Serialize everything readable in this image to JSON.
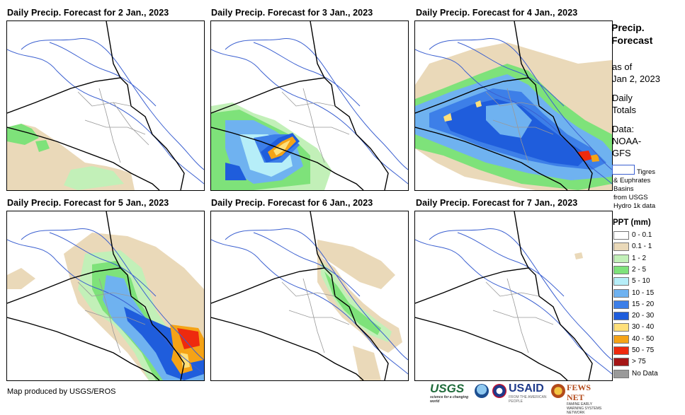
{
  "panels": [
    {
      "title": "Daily Precip. Forecast for 2 Jan., 2023"
    },
    {
      "title": "Daily Precip. Forecast for 3 Jan., 2023"
    },
    {
      "title": "Daily Precip. Forecast for 4 Jan., 2023"
    },
    {
      "title": "Daily Precip. Forecast for 5 Jan., 2023"
    },
    {
      "title": "Daily Precip. Forecast for 6 Jan., 2023"
    },
    {
      "title": "Daily Precip. Forecast for 7 Jan., 2023"
    }
  ],
  "sidebar": {
    "title_line1": "Precip.",
    "title_line2": "Forecast",
    "asof_line1": "as of",
    "asof_line2": "Jan 2, 2023",
    "daily_line1": "Daily",
    "daily_line2": "Totals",
    "data_line1": "Data:",
    "data_line2": "NOAA-",
    "data_line3": "GFS",
    "basin_line1": "Tigres",
    "basin_line2": "& Euphrates",
    "basin_line3": "Basins",
    "basin_line4": "from USGS",
    "basin_line5": "Hydro 1k data"
  },
  "legend": {
    "title": "PPT (mm)",
    "items": [
      {
        "label": "0 - 0.1",
        "color": "#ffffff"
      },
      {
        "label": "0.1 - 1",
        "color": "#ead9b9"
      },
      {
        "label": "1 - 2",
        "color": "#c2f0b8"
      },
      {
        "label": "2 - 5",
        "color": "#7ee27a"
      },
      {
        "label": "5 - 10",
        "color": "#b6eef8"
      },
      {
        "label": "10 - 15",
        "color": "#6fb2f0"
      },
      {
        "label": "15 - 20",
        "color": "#3d7fe8"
      },
      {
        "label": "20 - 30",
        "color": "#1f5ddc"
      },
      {
        "label": "30 - 40",
        "color": "#ffe07a"
      },
      {
        "label": "40 - 50",
        "color": "#f5a316"
      },
      {
        "label": "50 - 75",
        "color": "#ee2a0e"
      },
      {
        "label": "> 75",
        "color": "#a51616"
      },
      {
        "label": "No Data",
        "color": "#9a9a9a"
      }
    ]
  },
  "footer": {
    "credit": "Map produced by USGS/EROS",
    "usgs": "USGS",
    "usgs_tag": "science for a changing world",
    "usaid": "USAID",
    "usaid_tag": "FROM THE AMERICAN PEOPLE",
    "fews": "FEWS NET",
    "fews_tag": "FAMINE EARLY WARNING SYSTEMS NETWORK"
  }
}
